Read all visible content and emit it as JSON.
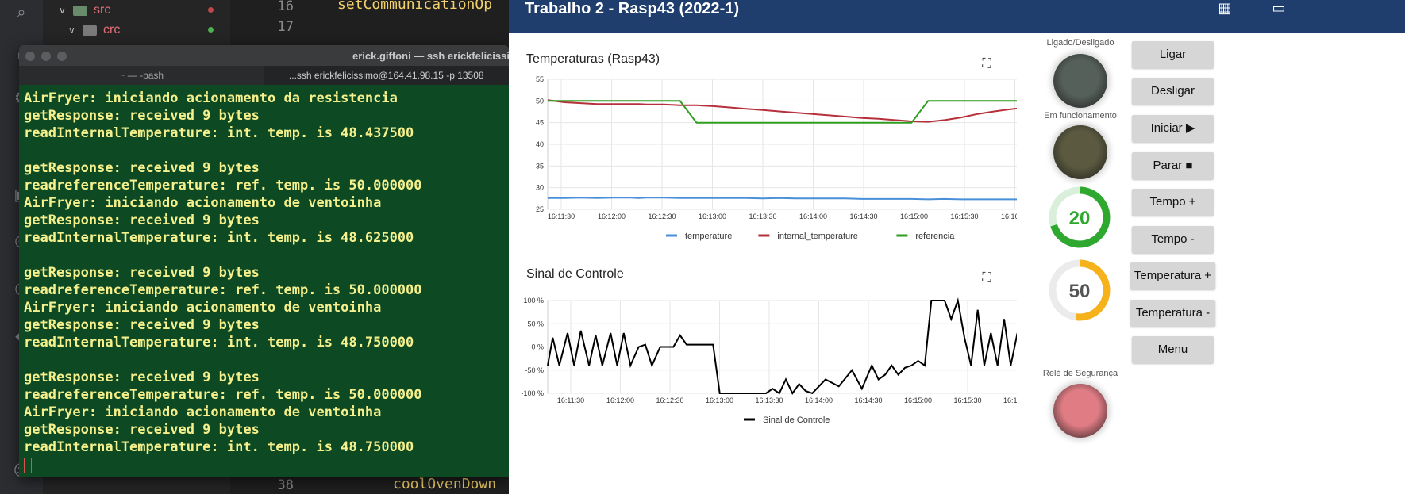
{
  "ide": {
    "tree": [
      {
        "label": "src",
        "dot_color": "#c04848"
      },
      {
        "label": "crc",
        "dot_color": "#4caf50"
      }
    ],
    "editor_lines": [
      {
        "number": "16",
        "code": "setCommunicationOp"
      },
      {
        "number": "17",
        "code": ""
      },
      {
        "number": "38",
        "code": "coolOvenDown"
      }
    ]
  },
  "terminal": {
    "title": "erick.giffoni — ssh erickfelicissimo@164.41.98.15 -p 13508",
    "tabs": [
      "~ — -bash",
      "...ssh erickfelicissimo@164.41.98.15 -p 13508"
    ],
    "lines": [
      "AirFryer: iniciando acionamento da resistencia",
      "getResponse: received 9 bytes",
      "readInternalTemperature: int. temp. is 48.437500",
      "",
      "getResponse: received 9 bytes",
      "readreferenceTemperature: ref. temp. is 50.000000",
      "AirFryer: iniciando acionamento de ventoinha",
      "getResponse: received 9 bytes",
      "readInternalTemperature: int. temp. is 48.625000",
      "",
      "getResponse: received 9 bytes",
      "readreferenceTemperature: ref. temp. is 50.000000",
      "AirFryer: iniciando acionamento de ventoinha",
      "getResponse: received 9 bytes",
      "readInternalTemperature: int. temp. is 48.750000",
      "",
      "getResponse: received 9 bytes",
      "readreferenceTemperature: ref. temp. is 50.000000",
      "AirFryer: iniciando acionamento de ventoinha",
      "getResponse: received 9 bytes",
      "readInternalTemperature: int. temp. is 48.750000"
    ]
  },
  "dashboard": {
    "title": "Trabalho 2 - Rasp43 (2022-1)",
    "header_icons": [
      "dashboard-grid-icon",
      "devices-icon"
    ],
    "controls": {
      "labels": {
        "power": "Ligado/Desligado",
        "running": "Em funcionamento",
        "safety": "Relé de Segurança"
      },
      "led_colors": {
        "power": "#56605a",
        "running": "#5b5a40",
        "safety": "#e07c84"
      },
      "buttons": [
        "Ligar",
        "Desligar",
        "Iniciar ▶",
        "Parar ■",
        "Tempo +",
        "Tempo -",
        "Temperatura +",
        "Temperatura -",
        "Menu"
      ],
      "gauges": [
        {
          "value": "20",
          "fraction": 0.7,
          "color": "#2ea82e",
          "track": "#d9efd9"
        },
        {
          "value": "50",
          "fraction": 0.52,
          "color": "#f5b21b",
          "track": "#ebebeb"
        }
      ]
    }
  },
  "chart_data": [
    {
      "type": "line",
      "title": "Temperaturas (Rasp43)",
      "xlabel": "",
      "ylabel": "",
      "ylim": [
        25,
        55
      ],
      "yticks": [
        "55",
        "50",
        "45",
        "40",
        "35",
        "30",
        "25"
      ],
      "xticks": [
        "16:11:30",
        "16:12:00",
        "16:12:30",
        "16:13:00",
        "16:13:30",
        "16:14:00",
        "16:14:30",
        "16:15:00",
        "16:15:30",
        "16:16:00"
      ],
      "legend": "bottom",
      "x": [
        0,
        10,
        20,
        30,
        40,
        50,
        55,
        60,
        70,
        80,
        90,
        100,
        110,
        120,
        130,
        140,
        150,
        160,
        170,
        180,
        190,
        200,
        210,
        220,
        230,
        240,
        250,
        260,
        270,
        280,
        290,
        298
      ],
      "series": [
        {
          "name": "temperature",
          "color": "#4a90d9",
          "values": [
            27.6,
            27.6,
            27.7,
            27.6,
            27.7,
            27.7,
            27.6,
            27.7,
            27.7,
            27.6,
            27.6,
            27.6,
            27.6,
            27.6,
            27.5,
            27.6,
            27.5,
            27.5,
            27.5,
            27.5,
            27.4,
            27.4,
            27.4,
            27.4,
            27.3,
            27.4,
            27.3,
            27.3,
            27.3,
            27.3,
            27.3,
            27.3
          ]
        },
        {
          "name": "internal_temperature",
          "color": "#b5303a",
          "values": [
            50.2,
            49.7,
            49.5,
            49.3,
            49.3,
            49.3,
            49.3,
            49.2,
            49.2,
            49.0,
            49.0,
            48.8,
            48.5,
            48.2,
            47.9,
            47.6,
            47.3,
            47.0,
            46.7,
            46.4,
            46.1,
            45.9,
            45.6,
            45.3,
            45.2,
            45.6,
            46.2,
            47.0,
            47.6,
            48.1,
            48.5,
            48.8
          ]
        },
        {
          "name": "referencia",
          "color": "#2e9e1f",
          "values": [
            50,
            50,
            50,
            50,
            50,
            50,
            50,
            50,
            50,
            50,
            45,
            45,
            45,
            45,
            45,
            45,
            45,
            45,
            45,
            45,
            45,
            45,
            45,
            45,
            50,
            50,
            50,
            50,
            50,
            50,
            50,
            50
          ]
        }
      ]
    },
    {
      "type": "line",
      "title": "Sinal de Controle",
      "xlabel": "",
      "ylabel": "",
      "ylim": [
        -100,
        100
      ],
      "yticks": [
        "100 %",
        "50 %",
        "0 %",
        "-50 %",
        "-100 %"
      ],
      "xticks": [
        "16:11:30",
        "16:12:00",
        "16:12:30",
        "16:13:00",
        "16:13:30",
        "16:14:00",
        "16:14:30",
        "16:15:00",
        "16:15:30",
        "16:16:00"
      ],
      "legend": "bottom",
      "series": [
        {
          "name": "Sinal de Controle",
          "color": "#000000",
          "x": [
            0,
            3,
            7,
            12,
            16,
            20,
            25,
            29,
            33,
            38,
            42,
            46,
            50,
            55,
            59,
            63,
            68,
            72,
            76,
            80,
            84,
            88,
            92,
            96,
            100,
            104,
            108,
            112,
            116,
            120,
            124,
            128,
            132,
            136,
            140,
            144,
            148,
            152,
            156,
            160,
            168,
            176,
            184,
            190,
            196,
            200,
            204,
            208,
            212,
            216,
            220,
            224,
            228,
            232,
            236,
            240,
            244,
            248,
            252,
            256,
            260,
            264,
            268,
            272,
            276,
            280,
            284,
            286,
            290,
            294,
            298
          ],
          "values": [
            -40,
            20,
            -40,
            30,
            -40,
            35,
            -40,
            25,
            -40,
            30,
            -40,
            30,
            -40,
            0,
            5,
            -40,
            0,
            0,
            0,
            25,
            5,
            5,
            5,
            5,
            5,
            -100,
            -100,
            -100,
            -100,
            -100,
            -100,
            -100,
            -100,
            -90,
            -100,
            -70,
            -100,
            -80,
            -95,
            -100,
            -70,
            -85,
            -50,
            -90,
            -40,
            -70,
            -60,
            -40,
            -60,
            -45,
            -40,
            -30,
            -40,
            100,
            100,
            100,
            60,
            100,
            20,
            -40,
            80,
            -40,
            30,
            -40,
            60,
            -40,
            30,
            -40,
            50,
            -40,
            -40
          ]
        }
      ]
    }
  ]
}
